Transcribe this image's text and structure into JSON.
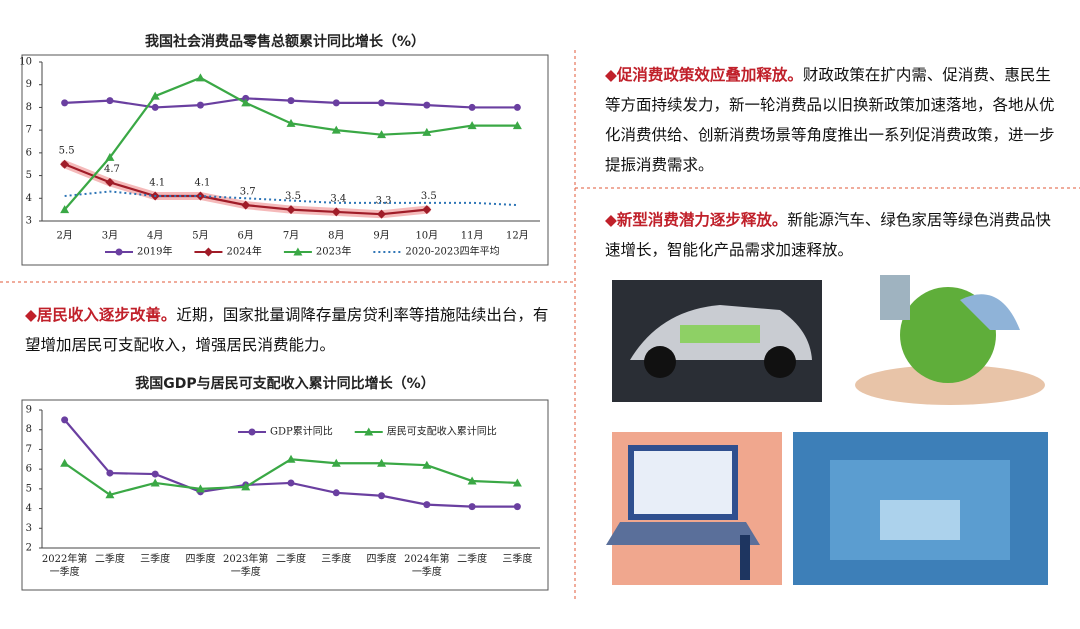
{
  "chart_data": [
    {
      "type": "line",
      "title": "我国社会消费品零售总额累计同比增长（%）",
      "categories": [
        "2月",
        "3月",
        "4月",
        "5月",
        "6月",
        "7月",
        "8月",
        "9月",
        "10月",
        "11月",
        "12月"
      ],
      "ylim": [
        3,
        10
      ],
      "yticks": [
        3,
        4,
        5,
        6,
        7,
        8,
        9,
        10
      ],
      "legend": "bottom",
      "series": [
        {
          "name": "2019年",
          "color": "#6a3fa0",
          "marker": "circle",
          "values": [
            8.2,
            8.3,
            8.0,
            8.1,
            8.4,
            8.3,
            8.2,
            8.2,
            8.1,
            8.0,
            8.0
          ]
        },
        {
          "name": "2024年",
          "color": "#a01c28",
          "marker": "diamond",
          "highlight": true,
          "data_labels": true,
          "values": [
            5.5,
            4.7,
            4.1,
            4.1,
            3.7,
            3.5,
            3.4,
            3.3,
            3.5,
            null,
            null
          ]
        },
        {
          "name": "2023年",
          "color": "#3aa845",
          "marker": "triangle",
          "values": [
            3.5,
            5.8,
            8.5,
            9.3,
            8.2,
            7.3,
            7.0,
            6.8,
            6.9,
            7.2,
            7.2
          ]
        },
        {
          "name": "2020-2023四年平均",
          "color": "#2e75b6",
          "marker": "none",
          "dash": "dotted",
          "values": [
            4.1,
            4.3,
            4.1,
            4.1,
            4.0,
            3.9,
            3.8,
            3.8,
            3.8,
            3.8,
            3.7
          ]
        }
      ]
    },
    {
      "type": "line",
      "title": "我国GDP与居民可支配收入累计同比增长（%）",
      "categories": [
        "2022年第一季度",
        "二季度",
        "三季度",
        "四季度",
        "2023年第一季度",
        "二季度",
        "三季度",
        "四季度",
        "2024年第一季度",
        "二季度",
        "三季度"
      ],
      "ylim": [
        2,
        9
      ],
      "yticks": [
        2,
        3,
        4,
        5,
        6,
        7,
        8,
        9
      ],
      "legend": "upper right",
      "series": [
        {
          "name": "GDP累计同比",
          "color": "#6a3fa0",
          "marker": "circle",
          "values": [
            8.5,
            5.8,
            5.75,
            4.85,
            5.2,
            5.3,
            4.8,
            4.65,
            4.2,
            4.1,
            4.1
          ]
        },
        {
          "name": "居民可支配收入累计同比",
          "color": "#3aa845",
          "marker": "triangle",
          "values": [
            6.3,
            4.7,
            5.3,
            5.0,
            5.1,
            6.5,
            6.3,
            6.3,
            6.2,
            5.4,
            5.3
          ]
        }
      ]
    }
  ],
  "sections": [
    {
      "heading": "◆促消费政策效应叠加释放。",
      "body": "财政政策在扩内需、促消费、惠民生等方面持续发力，新一轮消费品以旧换新政策加速落地，各地从优化消费供给、创新消费场景等角度推出一系列促消费政策，进一步提振消费需求。"
    },
    {
      "heading": "◆新型消费潜力逐步释放。",
      "body": "新能源汽车、绿色家居等绿色消费品快速增长，智能化产品需求加速释放。"
    },
    {
      "heading": "◆居民收入逐步改善。",
      "body": "近期，国家批量调降存量房贷利率等措施陆续出台，有望增加居民可支配收入，增强居民消费能力。"
    }
  ]
}
